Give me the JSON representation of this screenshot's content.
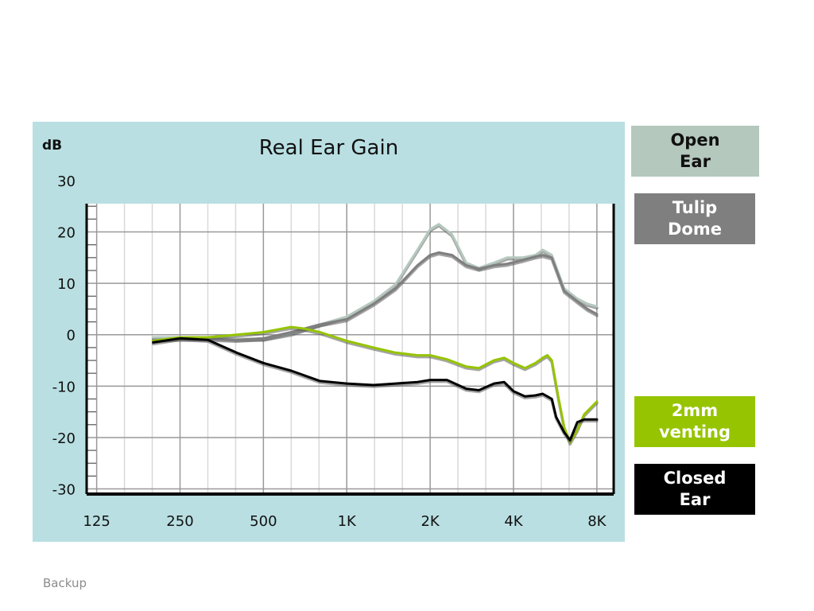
{
  "chart_data": {
    "type": "line",
    "title": "Real Ear Gain",
    "ylabel": "dB",
    "xlabel": "",
    "x_scale": "log",
    "xlim": [
      115,
      9200
    ],
    "ylim": [
      -31,
      25.5
    ],
    "y_ticks": [
      30,
      20,
      10,
      0,
      -10,
      -20,
      -30
    ],
    "x_ticks": [
      {
        "label": "125",
        "value": 125
      },
      {
        "label": "250",
        "value": 250
      },
      {
        "label": "500",
        "value": 500
      },
      {
        "label": "1K",
        "value": 1000
      },
      {
        "label": "2K",
        "value": 2000
      },
      {
        "label": "4K",
        "value": 4000
      },
      {
        "label": "8K",
        "value": 8000
      }
    ],
    "grid": true,
    "series": [
      {
        "name": "Open Ear",
        "color": "#b5c8be",
        "x": [
          200,
          250,
          315,
          400,
          500,
          630,
          800,
          1000,
          1250,
          1500,
          1800,
          2000,
          2150,
          2400,
          2700,
          3000,
          3400,
          3800,
          4300,
          4800,
          5100,
          5500,
          6100,
          6800,
          7400,
          8000
        ],
        "y": [
          -0.5,
          -0.5,
          -0.5,
          -0.8,
          -0.8,
          0.2,
          2.0,
          3.5,
          6.5,
          9.8,
          16.5,
          20.5,
          21.5,
          19.5,
          14.0,
          13.0,
          14.0,
          15.0,
          15.0,
          15.5,
          16.5,
          15.5,
          9.0,
          7.0,
          6.0,
          5.5
        ]
      },
      {
        "name": "Tulip Dome",
        "color": "#7f7f7f",
        "x": [
          200,
          250,
          315,
          400,
          500,
          630,
          800,
          1000,
          1250,
          1500,
          1800,
          2000,
          2150,
          2400,
          2700,
          3000,
          3400,
          3800,
          4300,
          4800,
          5100,
          5500,
          6100,
          6800,
          7400,
          8000
        ],
        "y": [
          -1.0,
          -0.8,
          -0.8,
          -1.0,
          -0.7,
          0.5,
          2.0,
          3.0,
          6.0,
          9.0,
          13.5,
          15.5,
          16.0,
          15.5,
          13.5,
          12.8,
          13.5,
          13.8,
          14.5,
          15.2,
          15.5,
          15.0,
          8.5,
          6.5,
          5.0,
          4.0
        ]
      },
      {
        "name": "2mm venting",
        "color": "#96c400",
        "x": [
          200,
          250,
          315,
          400,
          500,
          560,
          630,
          700,
          800,
          1000,
          1250,
          1500,
          1800,
          2000,
          2300,
          2700,
          3000,
          3400,
          3700,
          4000,
          4400,
          4800,
          5100,
          5300,
          5500,
          5800,
          6100,
          6400,
          6800,
          7200,
          8000
        ],
        "y": [
          -1.2,
          -0.5,
          -0.5,
          0.0,
          0.5,
          1.0,
          1.5,
          1.2,
          0.5,
          -1.2,
          -2.5,
          -3.5,
          -4.0,
          -4.0,
          -4.8,
          -6.2,
          -6.5,
          -5.0,
          -4.5,
          -5.5,
          -6.5,
          -5.5,
          -4.5,
          -4.0,
          -5.0,
          -12.0,
          -18.0,
          -21.0,
          -18.5,
          -15.5,
          -13.0
        ]
      },
      {
        "name": "Closed Ear",
        "color": "#000000",
        "x": [
          200,
          250,
          315,
          400,
          500,
          630,
          800,
          1000,
          1250,
          1500,
          1800,
          2000,
          2300,
          2700,
          3000,
          3400,
          3700,
          4000,
          4400,
          4800,
          5100,
          5300,
          5500,
          5700,
          6100,
          6400,
          6800,
          7200,
          8000
        ],
        "y": [
          -1.5,
          -0.7,
          -1.0,
          -3.5,
          -5.5,
          -7.0,
          -9.0,
          -9.5,
          -9.8,
          -9.5,
          -9.2,
          -8.8,
          -8.8,
          -10.5,
          -10.8,
          -9.5,
          -9.2,
          -11.0,
          -12.0,
          -11.8,
          -11.5,
          -12.0,
          -12.5,
          -16.0,
          -19.0,
          -20.5,
          -17.0,
          -16.5,
          -16.5
        ]
      }
    ]
  },
  "legend": [
    {
      "label_line1": "Open",
      "label_line2": "Ear",
      "bg": "#b5c8be",
      "fg": "#111111"
    },
    {
      "label_line1": "Tulip",
      "label_line2": "Dome",
      "bg": "#7f7f7f",
      "fg": "#ffffff"
    },
    {
      "label_line1": "2mm",
      "label_line2": "venting",
      "bg": "#96c400",
      "fg": "#ffffff"
    },
    {
      "label_line1": "Closed",
      "label_line2": "Ear",
      "bg": "#000000",
      "fg": "#ffffff"
    }
  ],
  "footer": {
    "text": "Backup"
  }
}
